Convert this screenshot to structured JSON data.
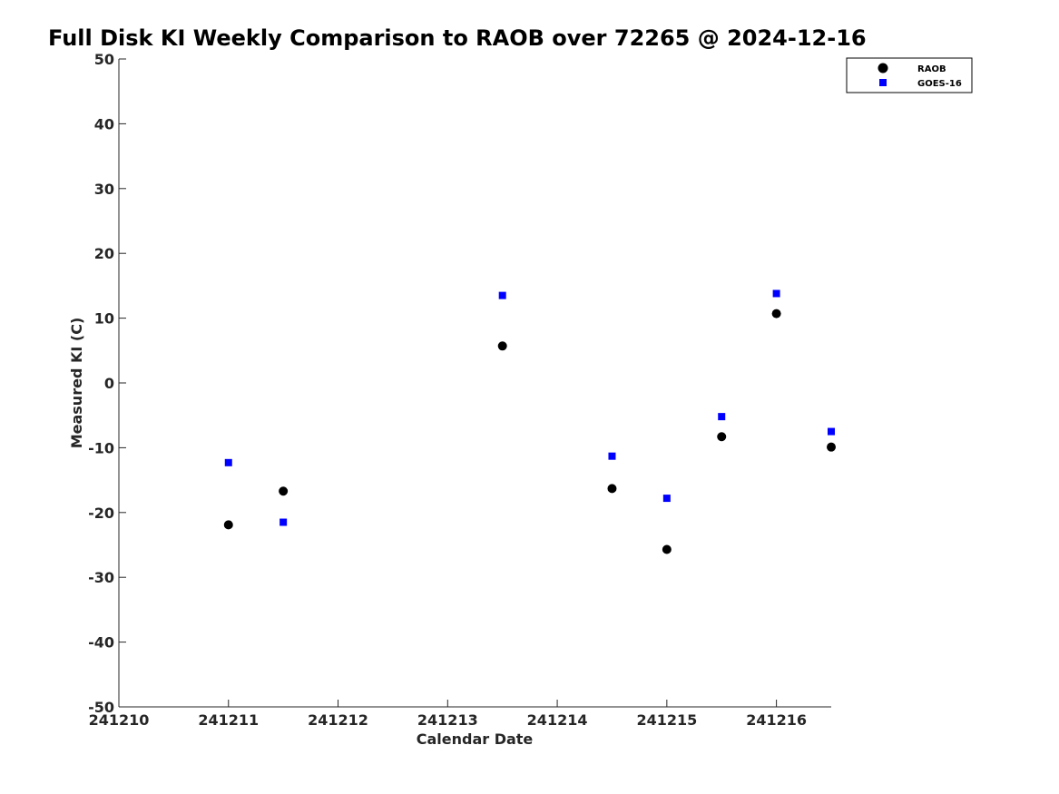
{
  "chart_data": {
    "type": "scatter",
    "title": "Full Disk KI Weekly Comparison to RAOB over 72265 @ 2024-12-16",
    "xlabel": "Calendar Date",
    "ylabel": "Measured KI (C)",
    "xlim": [
      "2024-12-10",
      "2024-12-16 12:00"
    ],
    "ylim": [
      -50,
      50
    ],
    "x_ticks": [
      "2024-12-10",
      "2024-12-11",
      "2024-12-12",
      "2024-12-13",
      "2024-12-14",
      "2024-12-15",
      "2024-12-16"
    ],
    "x_tick_labels": [
      "241210",
      "241211",
      "241212",
      "241213",
      "241214",
      "241215",
      "241216"
    ],
    "y_ticks": [
      50,
      40,
      30,
      20,
      10,
      0,
      -10,
      -20,
      -30,
      -40,
      -50
    ],
    "grid": false,
    "legend": "top-right",
    "series": [
      {
        "name": "RAOB",
        "marker": "circle",
        "color": "#000000",
        "points": [
          {
            "x": "2024-12-11 00:00",
            "y": -21.9
          },
          {
            "x": "2024-12-11 12:00",
            "y": -16.7
          },
          {
            "x": "2024-12-13 12:00",
            "y": 5.7
          },
          {
            "x": "2024-12-14 12:00",
            "y": -16.3
          },
          {
            "x": "2024-12-15 00:00",
            "y": -25.7
          },
          {
            "x": "2024-12-15 12:00",
            "y": -8.3
          },
          {
            "x": "2024-12-16 00:00",
            "y": 10.7
          },
          {
            "x": "2024-12-16 12:00",
            "y": -9.9
          }
        ]
      },
      {
        "name": "GOES-16",
        "marker": "square",
        "color": "#0000ff",
        "points": [
          {
            "x": "2024-12-11 00:00",
            "y": -12.3
          },
          {
            "x": "2024-12-11 12:00",
            "y": -21.5
          },
          {
            "x": "2024-12-13 12:00",
            "y": 13.5
          },
          {
            "x": "2024-12-14 12:00",
            "y": -11.3
          },
          {
            "x": "2024-12-15 00:00",
            "y": -17.8
          },
          {
            "x": "2024-12-15 12:00",
            "y": -5.2
          },
          {
            "x": "2024-12-16 00:00",
            "y": 13.8
          },
          {
            "x": "2024-12-16 12:00",
            "y": -7.5
          }
        ]
      }
    ]
  }
}
